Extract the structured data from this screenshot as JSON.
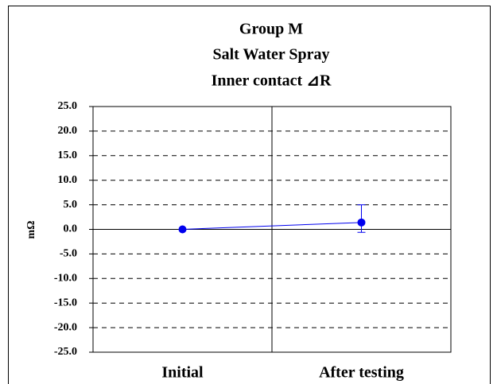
{
  "chart_data": {
    "type": "line",
    "title": [
      "Group M",
      "Salt Water Spray",
      "Inner contact ⊿R"
    ],
    "y_label": "mΩ",
    "categories": [
      "Initial",
      "After testing"
    ],
    "series": [
      {
        "name": "Inner contact ⊿R",
        "color": "#0000ee",
        "values": [
          0.0,
          1.4
        ],
        "errors": [
          null,
          {
            "minus": 2.0,
            "plus": 3.6
          }
        ]
      }
    ],
    "ylim": [
      -25,
      25
    ],
    "yticks": [
      {
        "value": -25,
        "label": "-25.0"
      },
      {
        "value": -20,
        "label": "-20.0"
      },
      {
        "value": -15,
        "label": "-15.0"
      },
      {
        "value": -10,
        "label": "-10.0"
      },
      {
        "value": -5,
        "label": "-5.0"
      },
      {
        "value": 0,
        "label": "0.0"
      },
      {
        "value": 5,
        "label": "5.0"
      },
      {
        "value": 10,
        "label": "10.0"
      },
      {
        "value": 15,
        "label": "15.0"
      },
      {
        "value": 20,
        "label": "20.0"
      },
      {
        "value": 25,
        "label": "25.0"
      }
    ],
    "grid": true
  }
}
